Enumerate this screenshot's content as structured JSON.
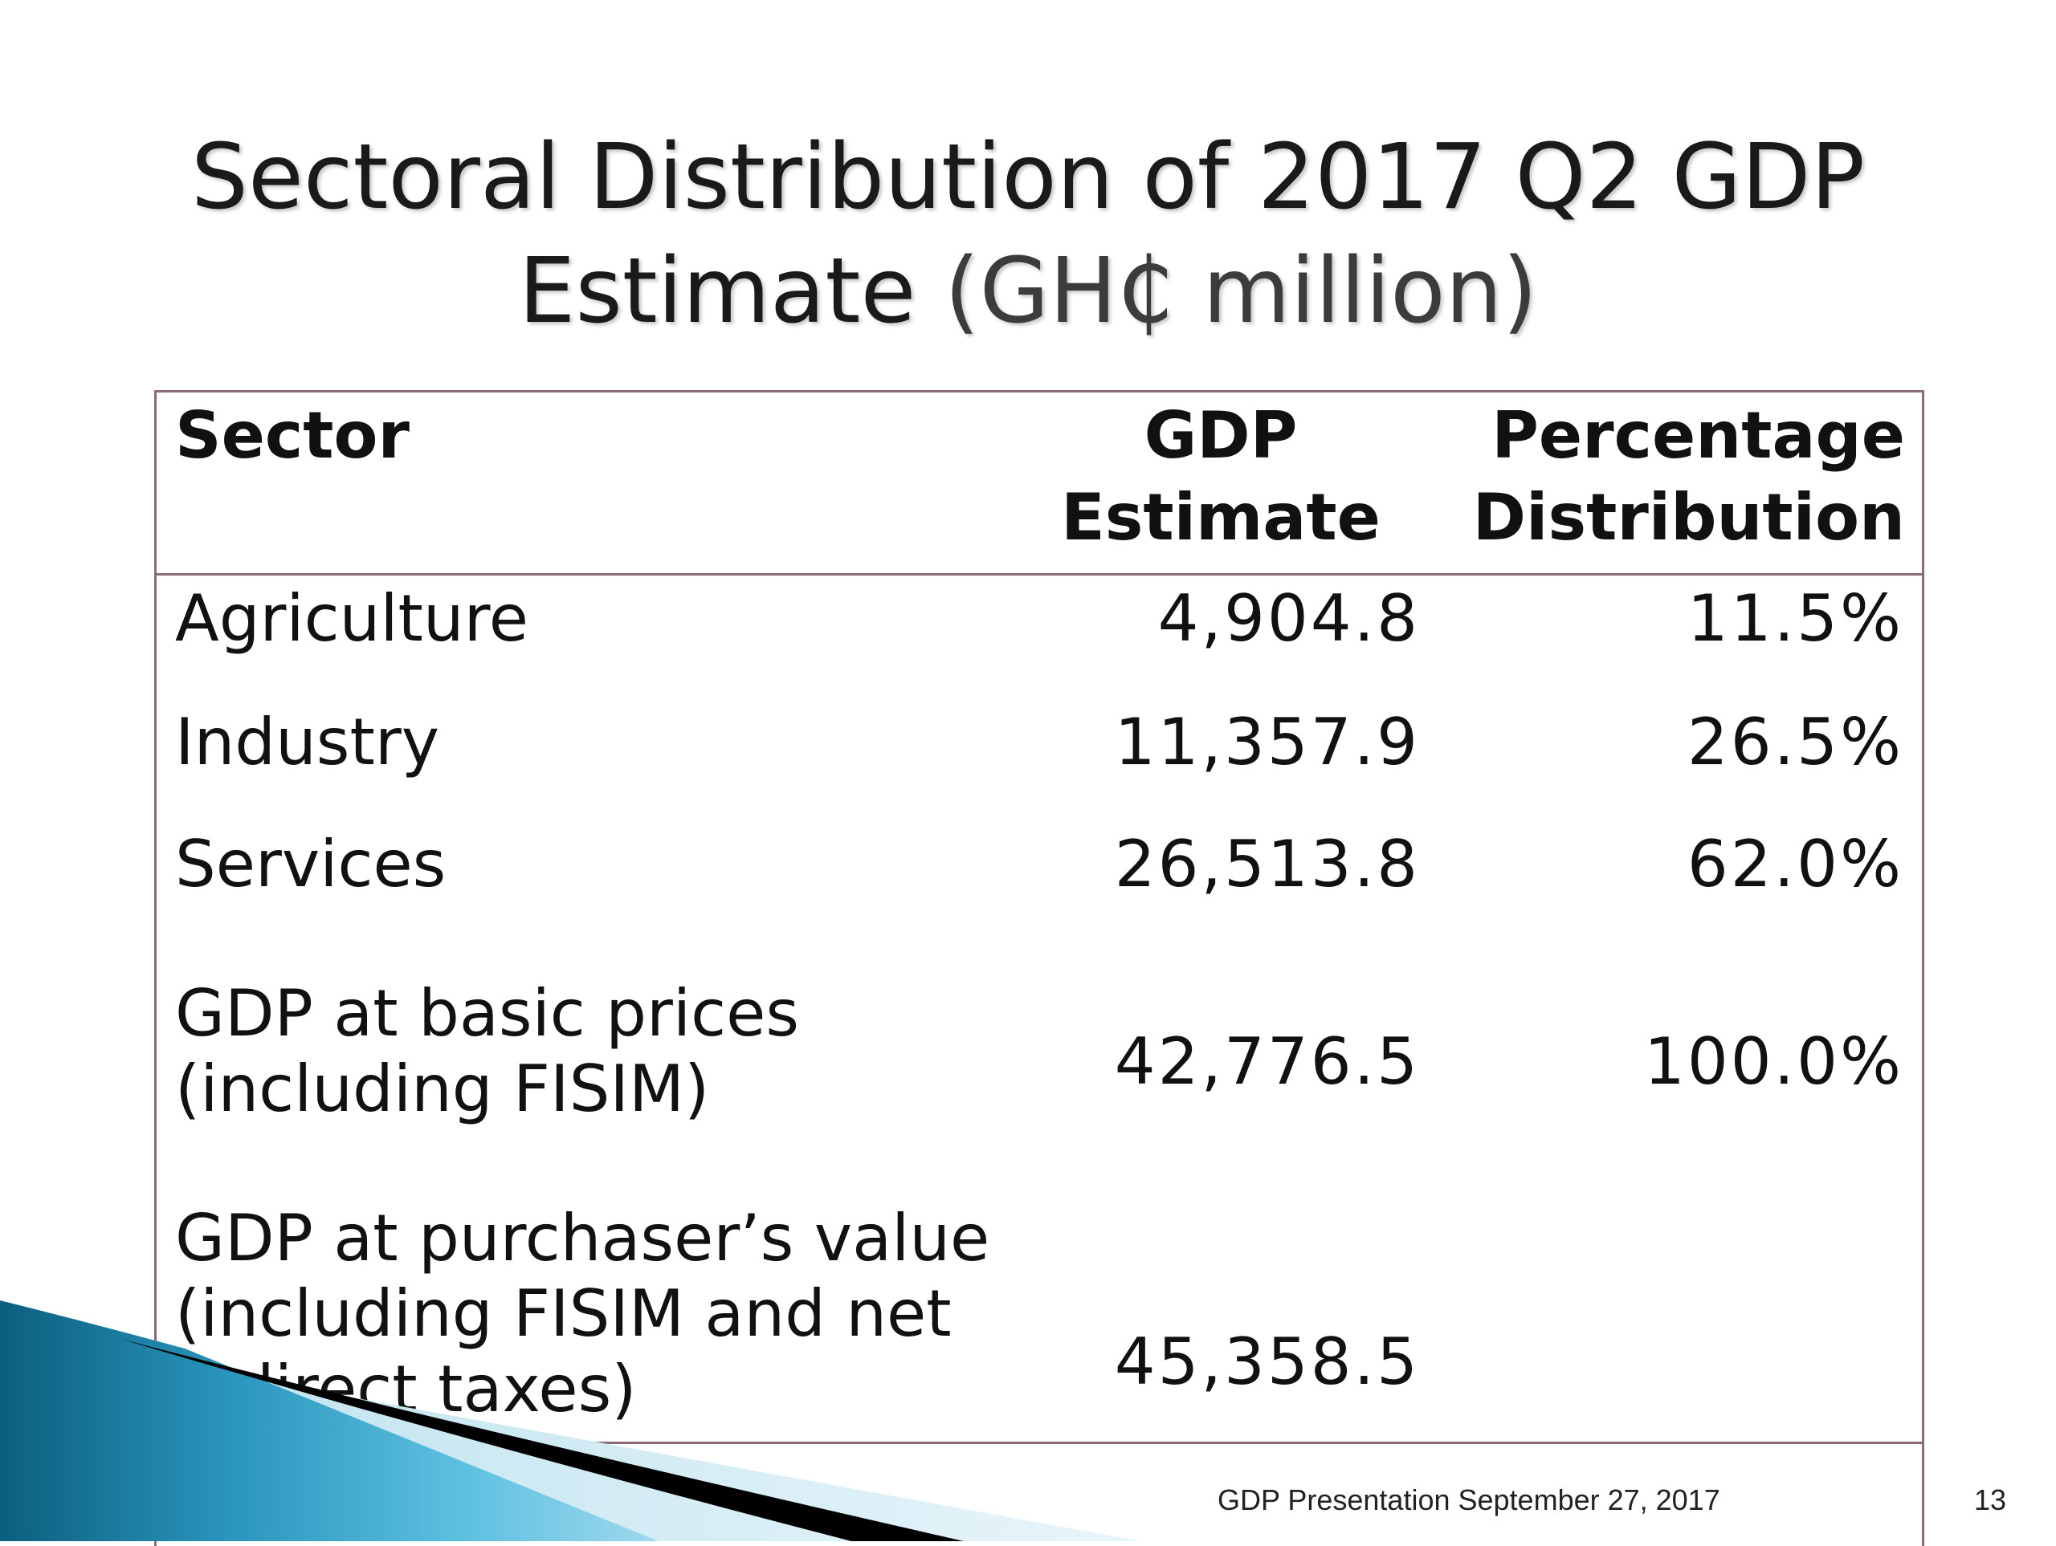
{
  "title": {
    "line1": "Sectoral Distribution of 2017 Q2 GDP",
    "line2_main": "Estimate ",
    "line2_unit": "(GH₵ million)"
  },
  "table": {
    "headers": {
      "sector": "Sector",
      "gdp_line1": "GDP",
      "gdp_line2": "Estimate",
      "pct_line1": "Percentage",
      "pct_line2": "Distribution"
    },
    "rows": [
      {
        "sector": "Agriculture",
        "gdp": "4,904.8",
        "pct": "11.5%"
      },
      {
        "sector": "Industry",
        "gdp": "11,357.9",
        "pct": "26.5%"
      },
      {
        "sector": "Services",
        "gdp": "26,513.8",
        "pct": "62.0%"
      },
      {
        "sector_line1": "GDP at basic prices",
        "sector_line2": "(including FISIM)",
        "gdp": "42,776.5",
        "pct": "100.0%"
      },
      {
        "sector_line1": "GDP at purchaser’s value",
        "sector_line2": "(including FISIM and net",
        "sector_line3": "indirect taxes)",
        "gdp": "45,358.5",
        "pct": ""
      }
    ]
  },
  "footer": {
    "text": "GDP Presentation September 27, 2017",
    "page_number": "13"
  },
  "colors": {
    "table_border": "#8a6a74",
    "swoosh_dark": "#0b5f7e",
    "swoosh_light": "#5cc0e0"
  }
}
